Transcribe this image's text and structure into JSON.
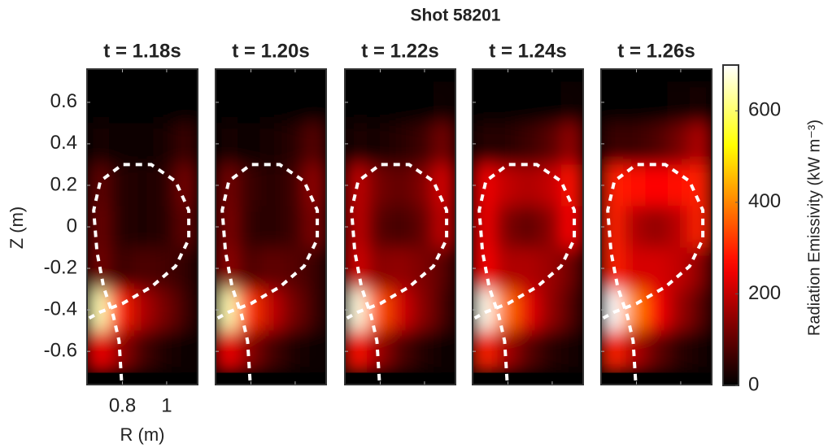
{
  "chart_data": {
    "type": "heatmap",
    "title": "Shot 58201",
    "xlabel": "R (m)",
    "ylabel": "Z (m)",
    "colorbar_label": "Radiation Emissivity (kW m⁻³)",
    "colormap": "hot",
    "xlim": [
      0.64,
      1.14
    ],
    "xticks": [
      0.8,
      1
    ],
    "ylim": [
      -0.76,
      0.76
    ],
    "yticks": [
      -0.6,
      -0.4,
      -0.2,
      0,
      0.2,
      0.4,
      0.6
    ],
    "clim": [
      0,
      700
    ],
    "cticks": [
      0,
      200,
      400,
      600
    ],
    "r": [
      0.69,
      0.79,
      0.89,
      0.99,
      1.09
    ],
    "z": [
      0.6,
      0.4,
      0.2,
      0,
      -0.2,
      -0.4,
      -0.6
    ],
    "separatrix": {
      "r": [
        0.796,
        0.785,
        0.759,
        0.715,
        0.685,
        0.67,
        0.7,
        0.8,
        0.93,
        1.04,
        1.1,
        1.1,
        1.04,
        0.93,
        0.8,
        0.7,
        0.65
      ],
      "z": [
        -0.74,
        -0.55,
        -0.43,
        -0.29,
        -0.12,
        0.08,
        0.22,
        0.3,
        0.3,
        0.22,
        0.08,
        -0.06,
        -0.19,
        -0.29,
        -0.37,
        -0.41,
        -0.44
      ]
    },
    "panels": [
      {
        "title": "t = 1.18s",
        "values": [
          [
            3,
            3,
            3,
            3,
            3
          ],
          [
            20,
            15,
            15,
            25,
            60
          ],
          [
            100,
            40,
            30,
            40,
            120
          ],
          [
            110,
            40,
            30,
            40,
            100
          ],
          [
            120,
            60,
            80,
            70,
            50
          ],
          [
            650,
            300,
            180,
            120,
            60
          ],
          [
            250,
            150,
            70,
            30,
            15
          ]
        ]
      },
      {
        "title": "t = 1.20s",
        "values": [
          [
            3,
            3,
            3,
            3,
            5
          ],
          [
            20,
            15,
            20,
            40,
            90
          ],
          [
            120,
            60,
            40,
            60,
            150
          ],
          [
            130,
            50,
            40,
            60,
            130
          ],
          [
            150,
            80,
            100,
            90,
            60
          ],
          [
            650,
            320,
            200,
            120,
            60
          ],
          [
            250,
            140,
            70,
            30,
            15
          ]
        ]
      },
      {
        "title": "t = 1.22s",
        "values": [
          [
            3,
            3,
            3,
            5,
            8
          ],
          [
            30,
            25,
            40,
            60,
            120
          ],
          [
            200,
            120,
            100,
            130,
            220
          ],
          [
            200,
            90,
            70,
            100,
            200
          ],
          [
            220,
            140,
            150,
            130,
            90
          ],
          [
            680,
            350,
            220,
            140,
            70
          ],
          [
            280,
            160,
            80,
            35,
            15
          ]
        ]
      },
      {
        "title": "t = 1.24s",
        "values": [
          [
            3,
            3,
            3,
            5,
            10
          ],
          [
            40,
            40,
            60,
            90,
            150
          ],
          [
            250,
            200,
            180,
            200,
            280
          ],
          [
            250,
            130,
            100,
            140,
            260
          ],
          [
            260,
            180,
            180,
            160,
            110
          ],
          [
            690,
            380,
            240,
            150,
            80
          ],
          [
            300,
            170,
            90,
            40,
            20
          ]
        ]
      },
      {
        "title": "t = 1.26s",
        "values": [
          [
            5,
            5,
            5,
            10,
            20
          ],
          [
            60,
            60,
            80,
            120,
            180
          ],
          [
            300,
            280,
            260,
            270,
            300
          ],
          [
            300,
            180,
            150,
            190,
            300
          ],
          [
            300,
            220,
            220,
            200,
            140
          ],
          [
            700,
            400,
            260,
            160,
            90
          ],
          [
            300,
            180,
            100,
            45,
            20
          ]
        ]
      }
    ]
  }
}
